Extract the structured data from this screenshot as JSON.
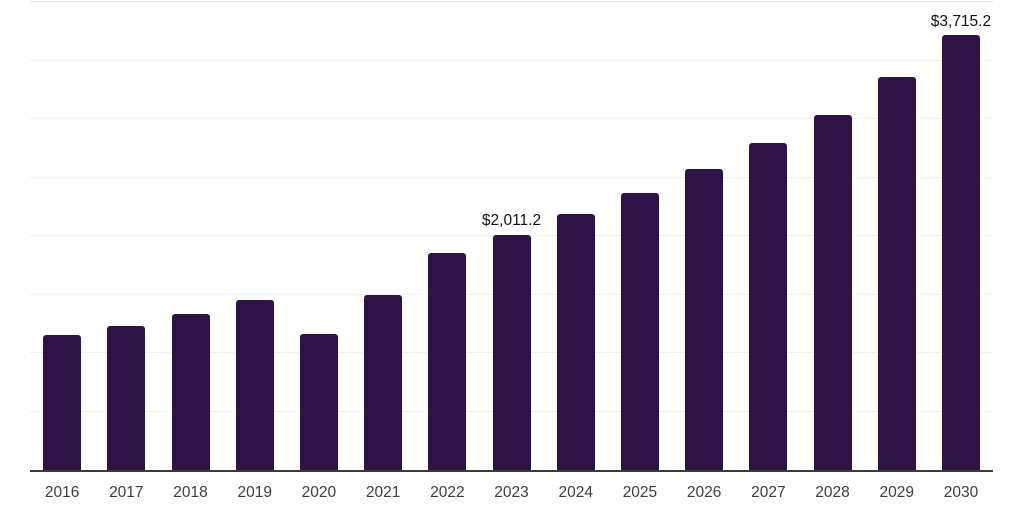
{
  "chart_data": {
    "type": "bar",
    "title": "",
    "xlabel": "",
    "ylabel": "",
    "categories": [
      "2016",
      "2017",
      "2018",
      "2019",
      "2020",
      "2021",
      "2022",
      "2023",
      "2024",
      "2025",
      "2026",
      "2027",
      "2028",
      "2029",
      "2030"
    ],
    "values": [
      1150,
      1231,
      1337,
      1452,
      1162,
      1500,
      1851,
      2011.2,
      2184,
      2365,
      2572,
      2798,
      3038,
      3361,
      3715.2
    ],
    "value_labels": [
      "",
      "",
      "",
      "",
      "",
      "",
      "",
      "$2,011.2",
      "",
      "",
      "",
      "",
      "",
      "",
      "$3,715.2"
    ],
    "ylim": [
      0,
      4000
    ],
    "gridline_step": 500,
    "grid": true,
    "legend": false,
    "bar_color": "#2f1347",
    "gridline_color": "#f0f0f0",
    "top_gridline_color": "#e3e3e3",
    "axis_line_color": "#3c3c3c",
    "value_label_color": "#111111",
    "tick_label_color": "#3d3d3d"
  }
}
